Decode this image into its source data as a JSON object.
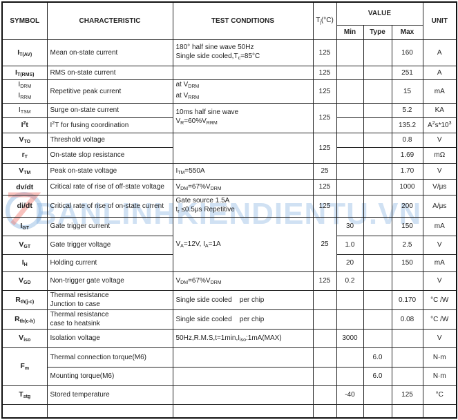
{
  "header": {
    "symbol": "SYMBOL",
    "characteristic": "CHARACTERISTIC",
    "test_conditions": "TEST CONDITIONS",
    "tj": "T",
    "tj_sub": "j",
    "tj_unit": "(°C)",
    "value": "VALUE",
    "min": "Min",
    "type": "Type",
    "max": "Max",
    "unit": "UNIT"
  },
  "watermark": "BANLINHKIENDIENTU.VN",
  "rows": [
    {
      "sym": "I",
      "sub": "T(AV)",
      "char": "Mean on-state current",
      "t1": "180° half sine wave 50Hz",
      "t2a": "Single side cooled,T",
      "t2s": "c",
      "t2b": "=85°C",
      "tj": "125",
      "max": "160",
      "unit": "A"
    },
    {
      "sym": "I",
      "sub": "T(RMS)",
      "char": "RMS on-state current",
      "tj": "125",
      "max": "251",
      "unit": "A"
    },
    {
      "sym": "I",
      "sub": "DRM",
      "sym2": "I",
      "sub2": "RRM",
      "char": "Repetitive peak current",
      "t1": "at V",
      "t1s": "DRM",
      "t2": "at V",
      "t2s": "RRM",
      "tj": "125",
      "max": "15",
      "unit": "mA"
    },
    {
      "sym": "I",
      "sub": "TSM",
      "char": "Surge on-state current",
      "t1": "10ms half sine wave",
      "t2a": "V",
      "t2s": "R",
      "t2b": "=60%V",
      "t2s2": "RRM",
      "tj": "125",
      "max": "5.2",
      "unit": "KA"
    },
    {
      "sym": "I",
      "sup": "2",
      "sym_b": "t",
      "char_a": "I",
      "char_sup": "2",
      "char_b": "T for fusing coordination",
      "max": "135.2",
      "unit_a": "A",
      "unit_sup": "2",
      "unit_b": "s*10",
      "unit_sup2": "3"
    },
    {
      "sym": "V",
      "sub": "TO",
      "char": "Threshold voltage",
      "tj": "125",
      "max": "0.8",
      "unit": "V"
    },
    {
      "sym": "r",
      "sub": "T",
      "char": "On-state slop resistance",
      "max": "1.69",
      "unit": "mΩ"
    },
    {
      "sym": "V",
      "sub": "TM",
      "char": "Peak on-state voltage",
      "ta": "I",
      "ts": "TM",
      "tb": "=550A",
      "tj": "25",
      "max": "1.70",
      "unit": "V"
    },
    {
      "sym": "dv/dt",
      "char": "Critical rate of rise of off-state voltage",
      "ta": "V",
      "ts": "DM",
      "tb": "=67%V",
      "ts2": "DRM",
      "tj": "125",
      "max": "1000",
      "unit": "V/μs"
    },
    {
      "sym": "di/dt",
      "char": "Critical rate of rise of on-state current",
      "t1": "Gate source 1.5A",
      "t2a": "t",
      "t2s": "r",
      "t2b": " ≤0.5μs    Repetitive",
      "tj": "125",
      "max": "200",
      "unit": "A/μs"
    },
    {
      "sym": "I",
      "sub": "GT",
      "char": "Gate trigger current",
      "ta": "V",
      "ts": "A",
      "tb": "=12V, I",
      "ts2": "A",
      "tc": "=1A",
      "tj": "25",
      "min": "30",
      "max": "150",
      "unit": "mA"
    },
    {
      "sym": "V",
      "sub": "GT",
      "char": "Gate trigger voltage",
      "min": "1.0",
      "max": "2.5",
      "unit": "V"
    },
    {
      "sym": "I",
      "sub": "H",
      "char": "Holding current",
      "min": "20",
      "max": "150",
      "unit": "mA"
    },
    {
      "sym": "V",
      "sub": "GD",
      "char": "Non-trigger gate voltage",
      "ta": "V",
      "ts": "DM",
      "tb": "=67%V",
      "ts2": "DRM",
      "tj": "125",
      "min": "0.2",
      "unit": "V"
    },
    {
      "sym": "R",
      "sub": "th(j-c)",
      "c1": "Thermal resistance",
      "c2": "Junction to case",
      "test": "Single side cooled    per chip",
      "max": "0.170",
      "unit": "°C /W"
    },
    {
      "sym": "R",
      "sub": "th(c-h)",
      "c1": "Thermal resistance",
      "c2": "case to heatsink",
      "test": "Single side cooled    per chip",
      "max": "0.08",
      "unit": "°C /W"
    },
    {
      "sym": "V",
      "sub": "iso",
      "char": "Isolation voltage",
      "ta": "50Hz,R.M.S,t=1min,I",
      "ts": "iso",
      "tb": ":1mA(MAX)",
      "min": "3000",
      "unit": "V"
    },
    {
      "sym": "F",
      "sub": "m",
      "char": "Thermal connection torque(M6)",
      "type": "6.0",
      "unit": "N·m"
    },
    {
      "char": "Mounting torque(M6)",
      "type": "6.0",
      "unit": "N·m"
    },
    {
      "sym": "T",
      "sub": "stg",
      "char": "Stored temperature",
      "min": "-40",
      "max": "125",
      "unit": "°C"
    }
  ]
}
